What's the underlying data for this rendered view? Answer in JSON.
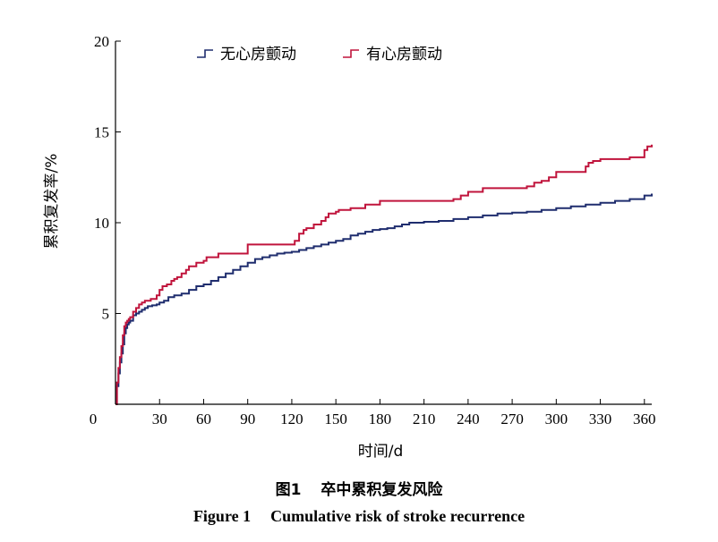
{
  "figure": {
    "caption_cn_label": "图1",
    "caption_cn_text": "卒中累积复发风险",
    "caption_en_label": "Figure 1",
    "caption_en_text": "Cumulative risk of stroke recurrence"
  },
  "chart_data": {
    "type": "line",
    "xlabel": "时间/d",
    "ylabel": "累积复发率/%",
    "xlim": [
      0,
      365
    ],
    "ylim": [
      0,
      20
    ],
    "x_ticks": [
      0,
      30,
      60,
      90,
      120,
      150,
      180,
      210,
      240,
      270,
      300,
      330,
      360
    ],
    "y_ticks": [
      5,
      10,
      15,
      20
    ],
    "x_tick_labels": [
      "0",
      "30",
      "60",
      "90",
      "120",
      "150",
      "180",
      "210",
      "240",
      "270",
      "300",
      "330",
      "360"
    ],
    "y_tick_labels": [
      "5",
      "10",
      "15",
      "20"
    ],
    "grid": false,
    "legend_position": "top",
    "series": [
      {
        "name": "无心房颤动",
        "color": "#1f2d6e",
        "x": [
          0,
          1,
          2,
          3,
          4,
          5,
          6,
          7,
          8,
          9,
          10,
          12,
          14,
          16,
          18,
          20,
          22,
          25,
          28,
          30,
          33,
          36,
          40,
          45,
          50,
          55,
          60,
          65,
          70,
          75,
          80,
          85,
          90,
          95,
          100,
          105,
          110,
          115,
          120,
          125,
          130,
          135,
          140,
          145,
          150,
          155,
          160,
          165,
          170,
          175,
          180,
          185,
          190,
          195,
          200,
          210,
          220,
          230,
          240,
          250,
          260,
          270,
          280,
          290,
          300,
          310,
          320,
          330,
          340,
          350,
          360,
          365
        ],
        "y": [
          0,
          1.0,
          1.7,
          2.3,
          2.8,
          3.3,
          3.9,
          4.2,
          4.4,
          4.5,
          4.6,
          4.9,
          5.0,
          5.1,
          5.2,
          5.3,
          5.4,
          5.45,
          5.5,
          5.6,
          5.7,
          5.9,
          6.0,
          6.1,
          6.3,
          6.5,
          6.6,
          6.8,
          7.0,
          7.2,
          7.4,
          7.6,
          7.8,
          8.0,
          8.1,
          8.2,
          8.3,
          8.35,
          8.4,
          8.5,
          8.6,
          8.7,
          8.8,
          8.9,
          9.0,
          9.1,
          9.3,
          9.4,
          9.5,
          9.6,
          9.65,
          9.7,
          9.8,
          9.9,
          10.0,
          10.05,
          10.1,
          10.2,
          10.3,
          10.4,
          10.5,
          10.55,
          10.6,
          10.7,
          10.8,
          10.9,
          11.0,
          11.1,
          11.2,
          11.3,
          11.5,
          11.6
        ]
      },
      {
        "name": "有心房颤动",
        "color": "#c0143c",
        "x": [
          0,
          1,
          2,
          3,
          4,
          5,
          6,
          7,
          8,
          9,
          10,
          12,
          14,
          16,
          18,
          20,
          24,
          28,
          30,
          32,
          35,
          38,
          40,
          42,
          45,
          48,
          50,
          55,
          60,
          62,
          70,
          80,
          90,
          100,
          110,
          120,
          122,
          125,
          128,
          130,
          135,
          140,
          143,
          145,
          150,
          152,
          160,
          170,
          180,
          190,
          200,
          210,
          220,
          230,
          235,
          240,
          250,
          260,
          270,
          280,
          285,
          290,
          295,
          300,
          310,
          320,
          322,
          325,
          330,
          340,
          350,
          360,
          362,
          365
        ],
        "y": [
          0,
          1.2,
          2.0,
          2.6,
          3.2,
          3.8,
          4.3,
          4.5,
          4.6,
          4.7,
          4.8,
          5.1,
          5.3,
          5.5,
          5.6,
          5.7,
          5.8,
          6.0,
          6.3,
          6.5,
          6.6,
          6.8,
          6.9,
          7.0,
          7.2,
          7.4,
          7.6,
          7.8,
          7.9,
          8.1,
          8.3,
          8.3,
          8.8,
          8.8,
          8.8,
          8.8,
          9.0,
          9.4,
          9.6,
          9.7,
          9.9,
          10.1,
          10.3,
          10.5,
          10.6,
          10.7,
          10.8,
          11.0,
          11.2,
          11.2,
          11.2,
          11.2,
          11.2,
          11.3,
          11.5,
          11.7,
          11.9,
          11.9,
          11.9,
          12.0,
          12.2,
          12.3,
          12.5,
          12.8,
          12.8,
          13.1,
          13.3,
          13.4,
          13.5,
          13.5,
          13.6,
          14.0,
          14.2,
          14.3
        ]
      }
    ]
  }
}
